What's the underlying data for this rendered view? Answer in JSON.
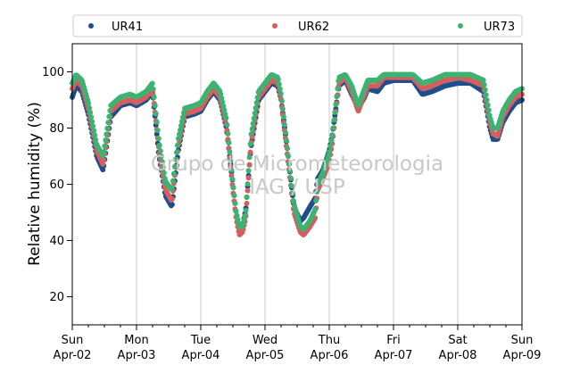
{
  "chart_data": {
    "type": "scatter",
    "title": "",
    "xlabel": "",
    "ylabel": "Relative humidity (%)",
    "ylim": [
      10,
      110
    ],
    "yticks": [
      20,
      40,
      60,
      80,
      100
    ],
    "xlim": [
      0,
      7
    ],
    "x_unit": "days",
    "x_ticks": [
      {
        "x": 0,
        "day": "Sun",
        "date": "Apr-02"
      },
      {
        "x": 1,
        "day": "Mon",
        "date": "Apr-03"
      },
      {
        "x": 2,
        "day": "Tue",
        "date": "Apr-04"
      },
      {
        "x": 3,
        "day": "Wed",
        "date": "Apr-05"
      },
      {
        "x": 4,
        "day": "Thu",
        "date": "Apr-06"
      },
      {
        "x": 5,
        "day": "Fri",
        "date": "Apr-07"
      },
      {
        "x": 6,
        "day": "Sat",
        "date": "Apr-08"
      },
      {
        "x": 7,
        "day": "Sun",
        "date": "Apr-09"
      }
    ],
    "grid": "vertical",
    "legend_placement": "top",
    "series": [
      {
        "name": "UR41",
        "color": "#1f4e8c",
        "points": [
          [
            0,
            91
          ],
          [
            0.06,
            95
          ],
          [
            0.15,
            93
          ],
          [
            0.25,
            85
          ],
          [
            0.38,
            70
          ],
          [
            0.48,
            65
          ],
          [
            0.6,
            84
          ],
          [
            0.75,
            88
          ],
          [
            0.9,
            89
          ],
          [
            1,
            88
          ],
          [
            1.15,
            90
          ],
          [
            1.25,
            93
          ],
          [
            1.35,
            70
          ],
          [
            1.45,
            56
          ],
          [
            1.55,
            52
          ],
          [
            1.65,
            72
          ],
          [
            1.75,
            84
          ],
          [
            1.9,
            85
          ],
          [
            2,
            86
          ],
          [
            2.1,
            90
          ],
          [
            2.2,
            93
          ],
          [
            2.3,
            90
          ],
          [
            2.4,
            80
          ],
          [
            2.5,
            60
          ],
          [
            2.55,
            50
          ],
          [
            2.6,
            45
          ],
          [
            2.65,
            45
          ],
          [
            2.7,
            51
          ],
          [
            2.78,
            73
          ],
          [
            2.9,
            90
          ],
          [
            3,
            93
          ],
          [
            3.1,
            96
          ],
          [
            3.2,
            95
          ],
          [
            3.25,
            90
          ],
          [
            3.35,
            72
          ],
          [
            3.45,
            52
          ],
          [
            3.55,
            47
          ],
          [
            3.6,
            48
          ],
          [
            3.7,
            52
          ],
          [
            3.78,
            55
          ],
          [
            3.82,
            62
          ],
          [
            3.9,
            65
          ],
          [
            4,
            72
          ],
          [
            4.05,
            78
          ],
          [
            4.15,
            95
          ],
          [
            4.25,
            97
          ],
          [
            4.35,
            92
          ],
          [
            4.45,
            87
          ],
          [
            4.55,
            91
          ],
          [
            4.6,
            94
          ],
          [
            4.75,
            93
          ],
          [
            4.85,
            96
          ],
          [
            5,
            97
          ],
          [
            5.15,
            97
          ],
          [
            5.3,
            97
          ],
          [
            5.45,
            92
          ],
          [
            5.6,
            93
          ],
          [
            5.8,
            95
          ],
          [
            6,
            96
          ],
          [
            6.2,
            96
          ],
          [
            6.4,
            93
          ],
          [
            6.5,
            80
          ],
          [
            6.55,
            76
          ],
          [
            6.62,
            76
          ],
          [
            6.7,
            82
          ],
          [
            6.8,
            86
          ],
          [
            6.9,
            89
          ],
          [
            7,
            90
          ]
        ]
      },
      {
        "name": "UR62",
        "color": "#d45f5f",
        "points": [
          [
            0,
            94
          ],
          [
            0.06,
            97
          ],
          [
            0.15,
            95
          ],
          [
            0.25,
            87
          ],
          [
            0.38,
            72
          ],
          [
            0.48,
            67
          ],
          [
            0.6,
            86
          ],
          [
            0.75,
            89
          ],
          [
            0.9,
            90
          ],
          [
            1,
            89
          ],
          [
            1.15,
            91
          ],
          [
            1.25,
            94
          ],
          [
            1.35,
            72
          ],
          [
            1.45,
            58
          ],
          [
            1.55,
            54
          ],
          [
            1.65,
            74
          ],
          [
            1.75,
            85
          ],
          [
            1.9,
            86
          ],
          [
            2,
            87
          ],
          [
            2.1,
            91
          ],
          [
            2.2,
            94
          ],
          [
            2.3,
            91
          ],
          [
            2.4,
            81
          ],
          [
            2.5,
            58
          ],
          [
            2.55,
            48
          ],
          [
            2.6,
            42
          ],
          [
            2.65,
            43
          ],
          [
            2.7,
            48
          ],
          [
            2.78,
            74
          ],
          [
            2.9,
            91
          ],
          [
            3,
            94
          ],
          [
            3.1,
            97
          ],
          [
            3.2,
            96
          ],
          [
            3.25,
            90
          ],
          [
            3.35,
            70
          ],
          [
            3.45,
            50
          ],
          [
            3.55,
            43
          ],
          [
            3.6,
            42
          ],
          [
            3.7,
            45
          ],
          [
            3.78,
            48
          ],
          [
            3.82,
            58
          ],
          [
            3.9,
            62
          ],
          [
            4,
            68
          ],
          [
            4.05,
            75
          ],
          [
            4.15,
            96
          ],
          [
            4.25,
            98
          ],
          [
            4.35,
            93
          ],
          [
            4.45,
            86
          ],
          [
            4.55,
            92
          ],
          [
            4.6,
            95
          ],
          [
            4.75,
            95
          ],
          [
            4.85,
            98
          ],
          [
            5,
            98
          ],
          [
            5.15,
            98
          ],
          [
            5.3,
            98
          ],
          [
            5.45,
            94
          ],
          [
            5.6,
            95
          ],
          [
            5.8,
            97
          ],
          [
            6,
            98
          ],
          [
            6.2,
            97
          ],
          [
            6.4,
            95
          ],
          [
            6.5,
            82
          ],
          [
            6.55,
            78
          ],
          [
            6.62,
            77
          ],
          [
            6.7,
            84
          ],
          [
            6.8,
            88
          ],
          [
            6.9,
            91
          ],
          [
            7,
            92
          ]
        ]
      },
      {
        "name": "UR73",
        "color": "#3cb371",
        "points": [
          [
            0,
            96
          ],
          [
            0.06,
            99
          ],
          [
            0.15,
            97
          ],
          [
            0.25,
            89
          ],
          [
            0.38,
            74
          ],
          [
            0.48,
            70
          ],
          [
            0.6,
            88
          ],
          [
            0.75,
            91
          ],
          [
            0.9,
            92
          ],
          [
            1,
            91
          ],
          [
            1.15,
            93
          ],
          [
            1.25,
            96
          ],
          [
            1.35,
            75
          ],
          [
            1.45,
            61
          ],
          [
            1.55,
            58
          ],
          [
            1.65,
            76
          ],
          [
            1.75,
            87
          ],
          [
            1.9,
            88
          ],
          [
            2,
            89
          ],
          [
            2.1,
            93
          ],
          [
            2.2,
            96
          ],
          [
            2.3,
            93
          ],
          [
            2.4,
            83
          ],
          [
            2.5,
            60
          ],
          [
            2.55,
            50
          ],
          [
            2.6,
            45
          ],
          [
            2.65,
            45
          ],
          [
            2.7,
            50
          ],
          [
            2.78,
            77
          ],
          [
            2.9,
            93
          ],
          [
            3,
            96
          ],
          [
            3.1,
            99
          ],
          [
            3.2,
            98
          ],
          [
            3.25,
            92
          ],
          [
            3.35,
            72
          ],
          [
            3.45,
            53
          ],
          [
            3.55,
            45
          ],
          [
            3.6,
            44
          ],
          [
            3.7,
            47
          ],
          [
            3.78,
            51
          ],
          [
            3.82,
            60
          ],
          [
            3.9,
            64
          ],
          [
            4,
            71
          ],
          [
            4.05,
            78
          ],
          [
            4.15,
            98
          ],
          [
            4.25,
            99
          ],
          [
            4.35,
            95
          ],
          [
            4.45,
            88
          ],
          [
            4.55,
            94
          ],
          [
            4.6,
            97
          ],
          [
            4.75,
            97
          ],
          [
            4.85,
            99
          ],
          [
            5,
            99
          ],
          [
            5.15,
            99
          ],
          [
            5.3,
            99
          ],
          [
            5.45,
            96
          ],
          [
            5.6,
            97
          ],
          [
            5.8,
            99
          ],
          [
            6,
            99
          ],
          [
            6.2,
            99
          ],
          [
            6.4,
            97
          ],
          [
            6.5,
            84
          ],
          [
            6.55,
            80
          ],
          [
            6.62,
            80
          ],
          [
            6.7,
            86
          ],
          [
            6.8,
            90
          ],
          [
            6.9,
            93
          ],
          [
            7,
            94
          ]
        ]
      }
    ]
  },
  "watermark": {
    "line1": "Grupo de Micrometeorologia",
    "line2": "IAG / USP"
  }
}
